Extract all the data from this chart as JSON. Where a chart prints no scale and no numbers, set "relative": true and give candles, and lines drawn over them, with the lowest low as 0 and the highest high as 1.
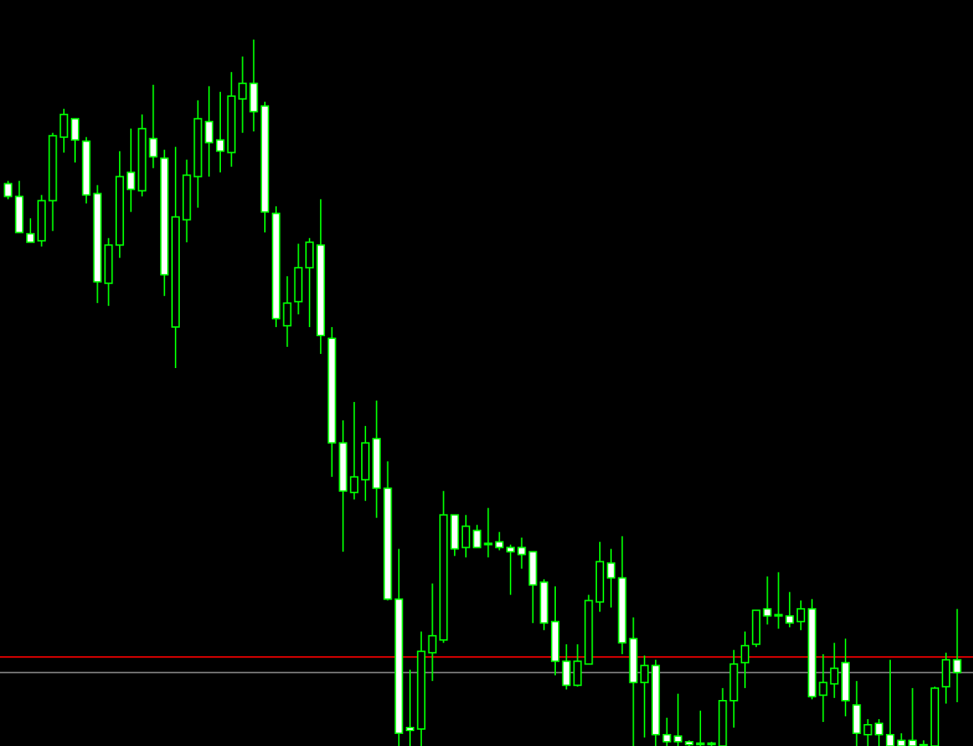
{
  "chart_data": {
    "type": "candlestick",
    "relative": true,
    "categories": [
      null,
      null,
      null,
      null,
      null,
      null,
      null,
      null,
      null,
      null,
      null,
      null,
      null,
      null,
      null,
      null,
      null,
      null,
      null,
      null,
      null,
      null,
      null,
      null,
      null,
      null,
      null,
      null,
      null,
      null,
      null,
      null,
      null,
      null,
      null,
      null,
      null,
      null,
      null,
      null,
      null,
      null,
      null,
      null,
      null,
      null,
      null,
      null,
      null,
      null,
      null,
      null,
      null,
      null,
      null,
      null,
      null,
      null,
      null,
      null,
      null,
      null,
      null,
      null,
      null,
      null,
      null,
      null,
      null,
      null,
      null,
      null,
      null,
      null,
      null,
      null,
      null,
      null,
      null,
      null,
      null,
      null,
      null,
      null,
      null,
      null
    ],
    "ohlc": [
      [
        0.796,
        0.8,
        0.774,
        0.778
      ],
      [
        0.778,
        0.8,
        0.727,
        0.727
      ],
      [
        0.725,
        0.747,
        0.713,
        0.713
      ],
      [
        0.715,
        0.78,
        0.707,
        0.772
      ],
      [
        0.772,
        0.868,
        0.729,
        0.864
      ],
      [
        0.862,
        0.902,
        0.84,
        0.894
      ],
      [
        0.888,
        0.888,
        0.826,
        0.858
      ],
      [
        0.856,
        0.862,
        0.768,
        0.78
      ],
      [
        0.782,
        0.794,
        0.627,
        0.657
      ],
      [
        0.655,
        0.719,
        0.623,
        0.709
      ],
      [
        0.709,
        0.842,
        0.691,
        0.806
      ],
      [
        0.812,
        0.874,
        0.756,
        0.788
      ],
      [
        0.786,
        0.894,
        0.778,
        0.874
      ],
      [
        0.86,
        0.936,
        0.818,
        0.834
      ],
      [
        0.832,
        0.844,
        0.637,
        0.667
      ],
      [
        0.593,
        0.848,
        0.535,
        0.749
      ],
      [
        0.745,
        0.83,
        0.713,
        0.808
      ],
      [
        0.806,
        0.914,
        0.762,
        0.888
      ],
      [
        0.884,
        0.934,
        0.806,
        0.854
      ],
      [
        0.858,
        0.926,
        0.812,
        0.842
      ],
      [
        0.84,
        0.954,
        0.82,
        0.92
      ],
      [
        0.916,
        0.976,
        0.868,
        0.938
      ],
      [
        0.938,
        1.0,
        0.87,
        0.898
      ],
      [
        0.906,
        0.912,
        0.727,
        0.756
      ],
      [
        0.754,
        0.764,
        0.593,
        0.605
      ],
      [
        0.595,
        0.665,
        0.565,
        0.627
      ],
      [
        0.629,
        0.711,
        0.611,
        0.677
      ],
      [
        0.677,
        0.719,
        0.593,
        0.713
      ],
      [
        0.709,
        0.774,
        0.555,
        0.581
      ],
      [
        0.577,
        0.593,
        0.381,
        0.429
      ],
      [
        0.429,
        0.461,
        0.275,
        0.361
      ],
      [
        0.359,
        0.487,
        0.349,
        0.381
      ],
      [
        0.377,
        0.453,
        0.347,
        0.429
      ],
      [
        0.435,
        0.489,
        0.323,
        0.365
      ],
      [
        0.365,
        0.403,
        0.206,
        0.208
      ],
      [
        0.208,
        0.279,
        0.0,
        0.018
      ],
      [
        0.026,
        0.108,
        0.0,
        0.022
      ],
      [
        0.024,
        0.162,
        0.0,
        0.134
      ],
      [
        0.132,
        0.23,
        0.092,
        0.156
      ],
      [
        0.15,
        0.361,
        0.146,
        0.327
      ],
      [
        0.327,
        0.327,
        0.269,
        0.279
      ],
      [
        0.281,
        0.327,
        0.267,
        0.311
      ],
      [
        0.305,
        0.313,
        0.281,
        0.281
      ],
      [
        0.287,
        0.337,
        0.267,
        0.285
      ],
      [
        0.289,
        0.303,
        0.277,
        0.281
      ],
      [
        0.281,
        0.285,
        0.214,
        0.275
      ],
      [
        0.281,
        0.295,
        0.251,
        0.271
      ],
      [
        0.275,
        0.275,
        0.174,
        0.228
      ],
      [
        0.232,
        0.236,
        0.164,
        0.174
      ],
      [
        0.176,
        0.226,
        0.1,
        0.12
      ],
      [
        0.12,
        0.144,
        0.08,
        0.086
      ],
      [
        0.086,
        0.144,
        0.084,
        0.12
      ],
      [
        0.116,
        0.214,
        0.116,
        0.206
      ],
      [
        0.204,
        0.289,
        0.19,
        0.261
      ],
      [
        0.259,
        0.279,
        0.196,
        0.238
      ],
      [
        0.238,
        0.297,
        0.13,
        0.146
      ],
      [
        0.152,
        0.182,
        0.0,
        0.09
      ],
      [
        0.09,
        0.128,
        0.012,
        0.114
      ],
      [
        0.114,
        0.122,
        0.0,
        0.016
      ],
      [
        0.016,
        0.04,
        0.0,
        0.006
      ],
      [
        0.014,
        0.074,
        0.0,
        0.006
      ],
      [
        0.006,
        0.008,
        0.0,
        0.002
      ],
      [
        0.004,
        0.05,
        0.0,
        0.002
      ],
      [
        0.004,
        0.006,
        0.0,
        0.002
      ],
      [
        0.0,
        0.082,
        0.0,
        0.064
      ],
      [
        0.064,
        0.136,
        0.026,
        0.116
      ],
      [
        0.118,
        0.162,
        0.082,
        0.142
      ],
      [
        0.144,
        0.192,
        0.14,
        0.192
      ],
      [
        0.194,
        0.24,
        0.172,
        0.184
      ],
      [
        0.186,
        0.246,
        0.166,
        0.184
      ],
      [
        0.184,
        0.218,
        0.168,
        0.174
      ],
      [
        0.176,
        0.206,
        0.164,
        0.194
      ],
      [
        0.194,
        0.208,
        0.066,
        0.07
      ],
      [
        0.072,
        0.13,
        0.034,
        0.09
      ],
      [
        0.088,
        0.146,
        0.068,
        0.11
      ],
      [
        0.118,
        0.152,
        0.042,
        0.064
      ],
      [
        0.058,
        0.092,
        0.0,
        0.018
      ],
      [
        0.016,
        0.038,
        0.0,
        0.03
      ],
      [
        0.032,
        0.038,
        0.0,
        0.016
      ],
      [
        0.016,
        0.122,
        0.0,
        0.0
      ],
      [
        0.008,
        0.018,
        0.0,
        0.0
      ],
      [
        0.008,
        0.082,
        0.0,
        0.0
      ],
      [
        0.002,
        0.008,
        0.0,
        0.0
      ],
      [
        0.0,
        0.084,
        0.0,
        0.082
      ],
      [
        0.084,
        0.132,
        0.06,
        0.122
      ],
      [
        0.122,
        0.194,
        0.062,
        0.104
      ]
    ],
    "ref_lines": [
      {
        "axis": "y",
        "value": 0.126,
        "color": "#ff0000"
      },
      {
        "axis": "y",
        "value": 0.104,
        "color": "#808080"
      }
    ]
  }
}
